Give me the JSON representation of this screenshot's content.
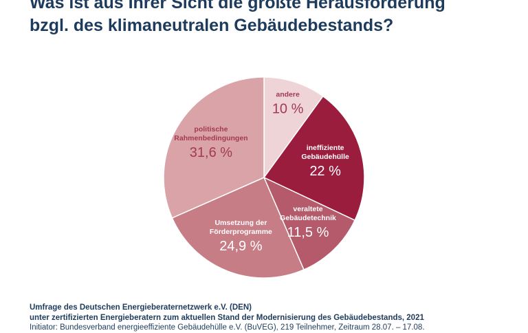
{
  "title": {
    "line1": "Was ist aus Ihrer Sicht die größte Herausforderung",
    "line2": "bzgl. des klimaneutralen Gebäudebestands?"
  },
  "chart_data": {
    "type": "pie",
    "slices": [
      {
        "label_lines": [
          "andere"
        ],
        "value_label": "10 %",
        "value": 10,
        "color": "#eed4d6",
        "text_color": "#a23a52"
      },
      {
        "label_lines": [
          "ineffiziente",
          "Gebäudehülle"
        ],
        "value_label": "22 %",
        "value": 22,
        "color": "#9b1d3e",
        "text_color": "#ffffff"
      },
      {
        "label_lines": [
          "veraltete",
          "Gebäudetechnik"
        ],
        "value_label": "11,5 %",
        "value": 11.5,
        "color": "#b55a6b",
        "text_color": "#ffffff"
      },
      {
        "label_lines": [
          "Umsetzung der",
          "Förderprogramme"
        ],
        "value_label": "24,9 %",
        "value": 24.9,
        "color": "#c77d85",
        "text_color": "#ffffff"
      },
      {
        "label_lines": [
          "politische",
          "Rahmenbedingungen"
        ],
        "value_label": "31,6 %",
        "value": 31.6,
        "color": "#d9a3a8",
        "text_color": "#a23a52"
      }
    ]
  },
  "footer": {
    "line1": "Umfrage des Deutschen Energieberaternetzwerk e.V. (DEN)",
    "line2": "unter zertifizierten Energieberatern zum aktuellen Stand der Modernisierung des Gebäudebestands, 2021",
    "line3": "Initiator: Bundesverband energieeffiziente Gebäudehülle e.V. (BuVEG), 219 Teilnehmer, Zeitraum 28.07. – 17.08."
  }
}
